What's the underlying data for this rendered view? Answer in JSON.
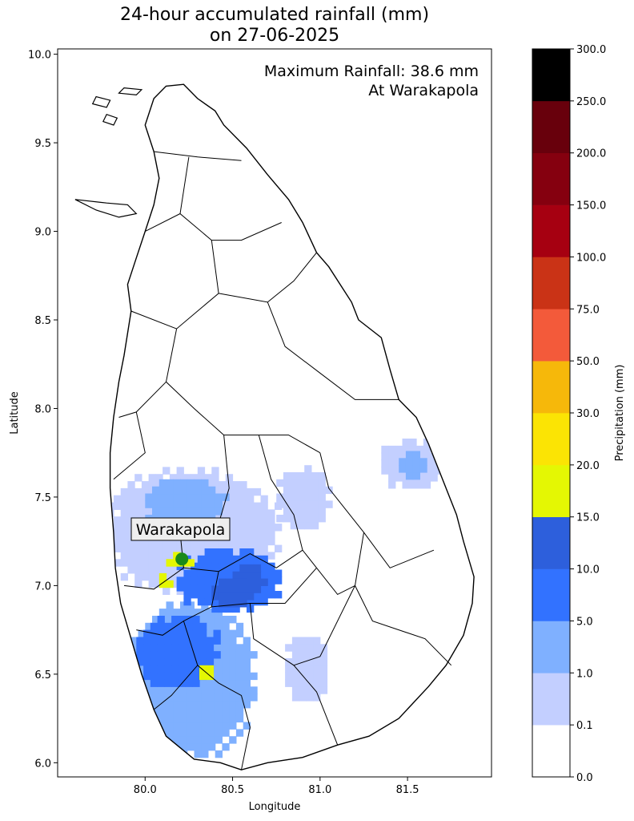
{
  "title": {
    "line1": "24-hour accumulated rainfall (mm)",
    "line2": "on 27-06-2025"
  },
  "annotation": {
    "line1": "Maximum Rainfall: 38.6 mm",
    "line2": "At Warakapola"
  },
  "axes": {
    "xlabel": "Longitude",
    "ylabel": "Latitude",
    "xlim": [
      79.5,
      81.98
    ],
    "ylim": [
      5.92,
      10.03
    ],
    "xticks": [
      80.0,
      80.5,
      81.0,
      81.5
    ],
    "xtick_labels": [
      "80.0",
      "80.5",
      "81.0",
      "81.5"
    ],
    "yticks": [
      6.0,
      6.5,
      7.0,
      7.5,
      8.0,
      8.5,
      9.0,
      9.5,
      10.0
    ],
    "ytick_labels": [
      "6.0",
      "6.5",
      "7.0",
      "7.5",
      "8.0",
      "8.5",
      "9.0",
      "9.5",
      "10.0"
    ]
  },
  "station": {
    "name": "Warakapola",
    "lon": 80.21,
    "lat": 7.15,
    "marker_color": "#1a8a1a"
  },
  "colorbar": {
    "label": "Precipitation (mm)",
    "boundaries": [
      "0.0",
      "0.1",
      "1.0",
      "5.0",
      "10.0",
      "15.0",
      "20.0",
      "30.0",
      "50.0",
      "75.0",
      "100.0",
      "150.0",
      "200.0",
      "250.0",
      "300.0"
    ],
    "colors": [
      "#ffffff",
      "#c3cfff",
      "#7fb0ff",
      "#3272ff",
      "#2d5fdc",
      "#e4f703",
      "#fbe404",
      "#f6b80a",
      "#f35a3a",
      "#ca3316",
      "#a60011",
      "#85000f",
      "#68000c",
      "#000000"
    ]
  },
  "chart_data": {
    "type": "heatmap",
    "title": "24-hour accumulated rainfall (mm) on 27-06-2025",
    "xlabel": "Longitude",
    "ylabel": "Latitude",
    "xlim": [
      79.5,
      81.98
    ],
    "ylim": [
      5.92,
      10.03
    ],
    "rain_regions_mm": [
      {
        "lon_range": [
          79.78,
          80.75
        ],
        "lat_range": [
          6.95,
          7.65
        ],
        "level": "0.1-1.0"
      },
      {
        "lon_range": [
          80.0,
          80.45
        ],
        "lat_range": [
          7.32,
          7.6
        ],
        "level": "1.0-5.0"
      },
      {
        "lon_range": [
          79.88,
          80.62
        ],
        "lat_range": [
          6.03,
          6.9
        ],
        "level": "1.0-5.0"
      },
      {
        "lon_range": [
          80.18,
          80.78
        ],
        "lat_range": [
          6.85,
          7.2
        ],
        "level": "5.0-10.0"
      },
      {
        "lon_range": [
          79.95,
          80.42
        ],
        "lat_range": [
          6.43,
          6.82
        ],
        "level": "5.0-10.0"
      },
      {
        "lon_range": [
          80.5,
          80.68
        ],
        "lat_range": [
          6.96,
          7.11
        ],
        "level": "10.0-15.0"
      },
      {
        "lon_range": [
          80.38,
          80.6
        ],
        "lat_range": [
          6.88,
          7.04
        ],
        "level": "10.0-15.0"
      },
      {
        "lon_range": [
          80.12,
          80.28
        ],
        "lat_range": [
          7.11,
          7.17
        ],
        "level": "15.0-20.0"
      },
      {
        "lon_range": [
          80.08,
          80.15
        ],
        "lat_range": [
          6.99,
          7.06
        ],
        "level": "15.0-20.0"
      },
      {
        "lon_range": [
          80.31,
          80.4
        ],
        "lat_range": [
          6.47,
          6.54
        ],
        "level": "15.0-20.0"
      },
      {
        "lon_range": [
          80.75,
          81.05
        ],
        "lat_range": [
          7.32,
          7.66
        ],
        "level": "0.1-1.0"
      },
      {
        "lon_range": [
          80.8,
          81.05
        ],
        "lat_range": [
          6.35,
          6.72
        ],
        "level": "0.1-1.0"
      },
      {
        "lon_range": [
          81.35,
          81.7
        ],
        "lat_range": [
          7.55,
          7.82
        ],
        "level": "0.1-1.0"
      },
      {
        "lon_range": [
          81.45,
          81.62
        ],
        "lat_range": [
          7.6,
          7.74
        ],
        "level": "1.0-5.0"
      }
    ],
    "max_rainfall_mm": 38.6,
    "max_location": "Warakapola",
    "grid": false
  }
}
